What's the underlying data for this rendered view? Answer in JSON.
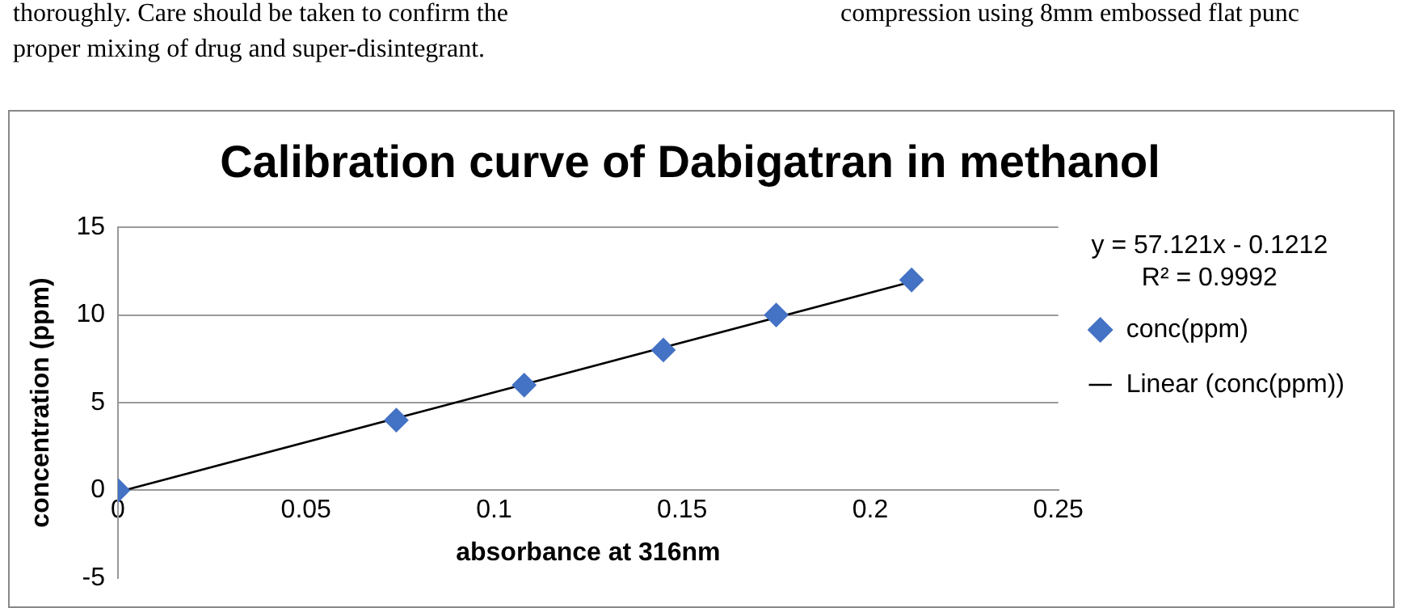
{
  "chart_data": {
    "type": "scatter",
    "title": "Calibration curve of Dabigatran in methanol",
    "xlabel": "absorbance at 316nm",
    "ylabel": "concentration (ppm)",
    "annotations": [
      "thoroughly. Care should be taken to confirm the",
      "proper mixing of drug and super-disintegrant.",
      "compression using 8mm embossed flat punc",
      "y = 57.121x - 0.1212",
      "R² = 0.9992"
    ],
    "x": [
      0,
      0.074,
      0.108,
      0.145,
      0.175,
      0.211
    ],
    "series": [
      {
        "name": "conc(ppm)",
        "color": "#4472c4",
        "marker": "diamond",
        "values": [
          0,
          4,
          6,
          8,
          10,
          12
        ]
      },
      {
        "name": "Linear (conc(ppm))",
        "type": "line",
        "color": "#000000",
        "marker": "none",
        "x": [
          0,
          0.211
        ],
        "values": [
          -0.1,
          11.9
        ]
      }
    ],
    "xlim": [
      0,
      0.25
    ],
    "xticks": [
      0,
      0.05,
      0.1,
      0.15,
      0.2,
      0.25
    ],
    "ylim": [
      -5,
      15
    ],
    "yticks": [
      -5,
      0,
      5,
      10,
      15
    ],
    "grid": "y",
    "legend": "right"
  }
}
